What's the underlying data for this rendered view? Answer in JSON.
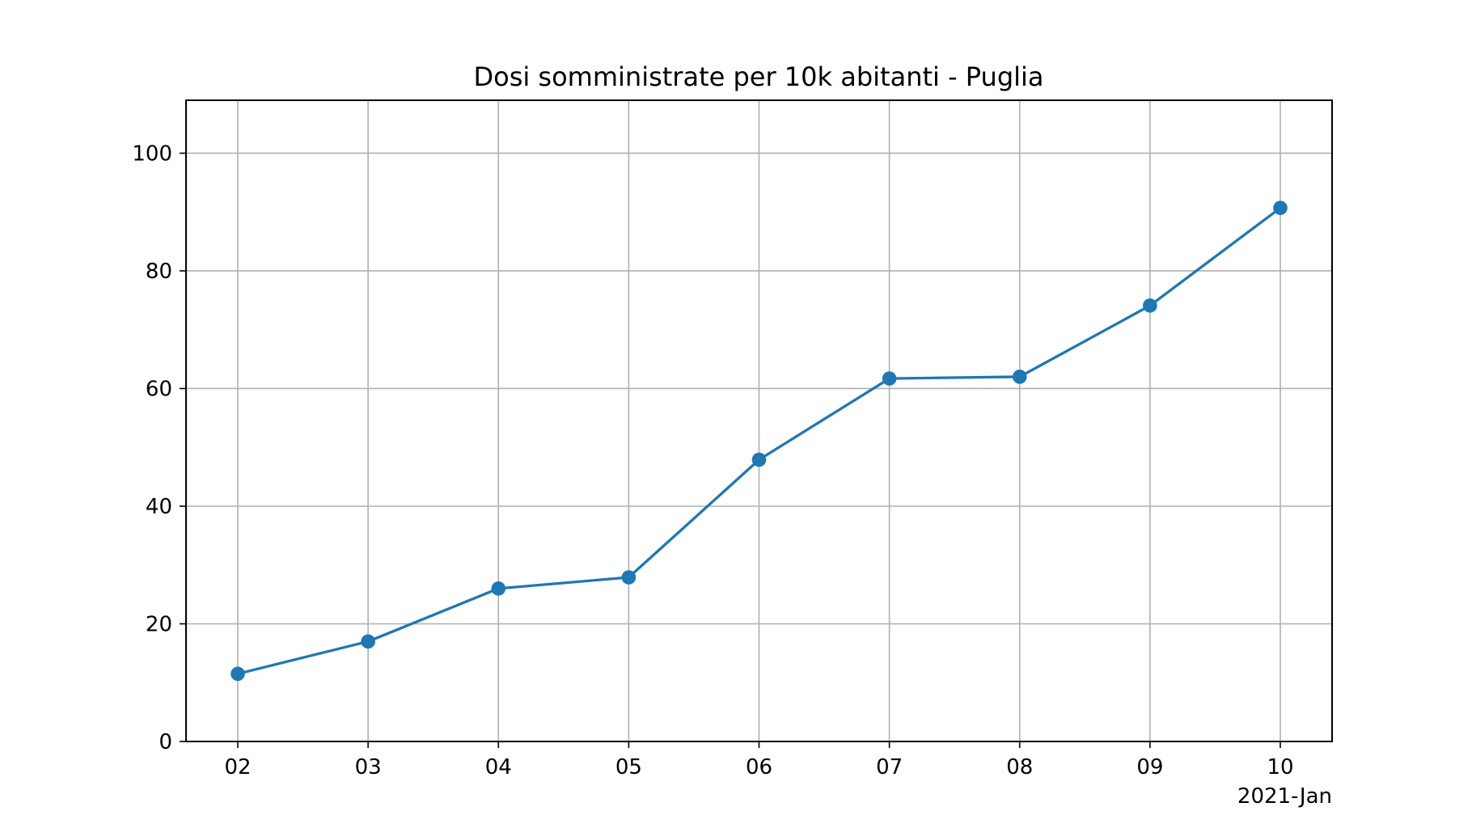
{
  "chart_data": {
    "type": "line",
    "title": "Dosi somministrate per 10k abitanti - Puglia",
    "xlabel": "",
    "ylabel": "",
    "x_offset_label": "2021-Jan",
    "categories": [
      "02",
      "03",
      "04",
      "05",
      "06",
      "07",
      "08",
      "09",
      "10"
    ],
    "series": [
      {
        "values": [
          11.5,
          17.0,
          26.0,
          27.9,
          47.9,
          61.7,
          62.0,
          74.1,
          90.7
        ],
        "color": "#1f77b4",
        "marker": "circle"
      }
    ],
    "yticks": [
      0,
      20,
      40,
      60,
      80,
      100
    ],
    "ylim": [
      0,
      109
    ],
    "grid": true,
    "legend": "none"
  }
}
